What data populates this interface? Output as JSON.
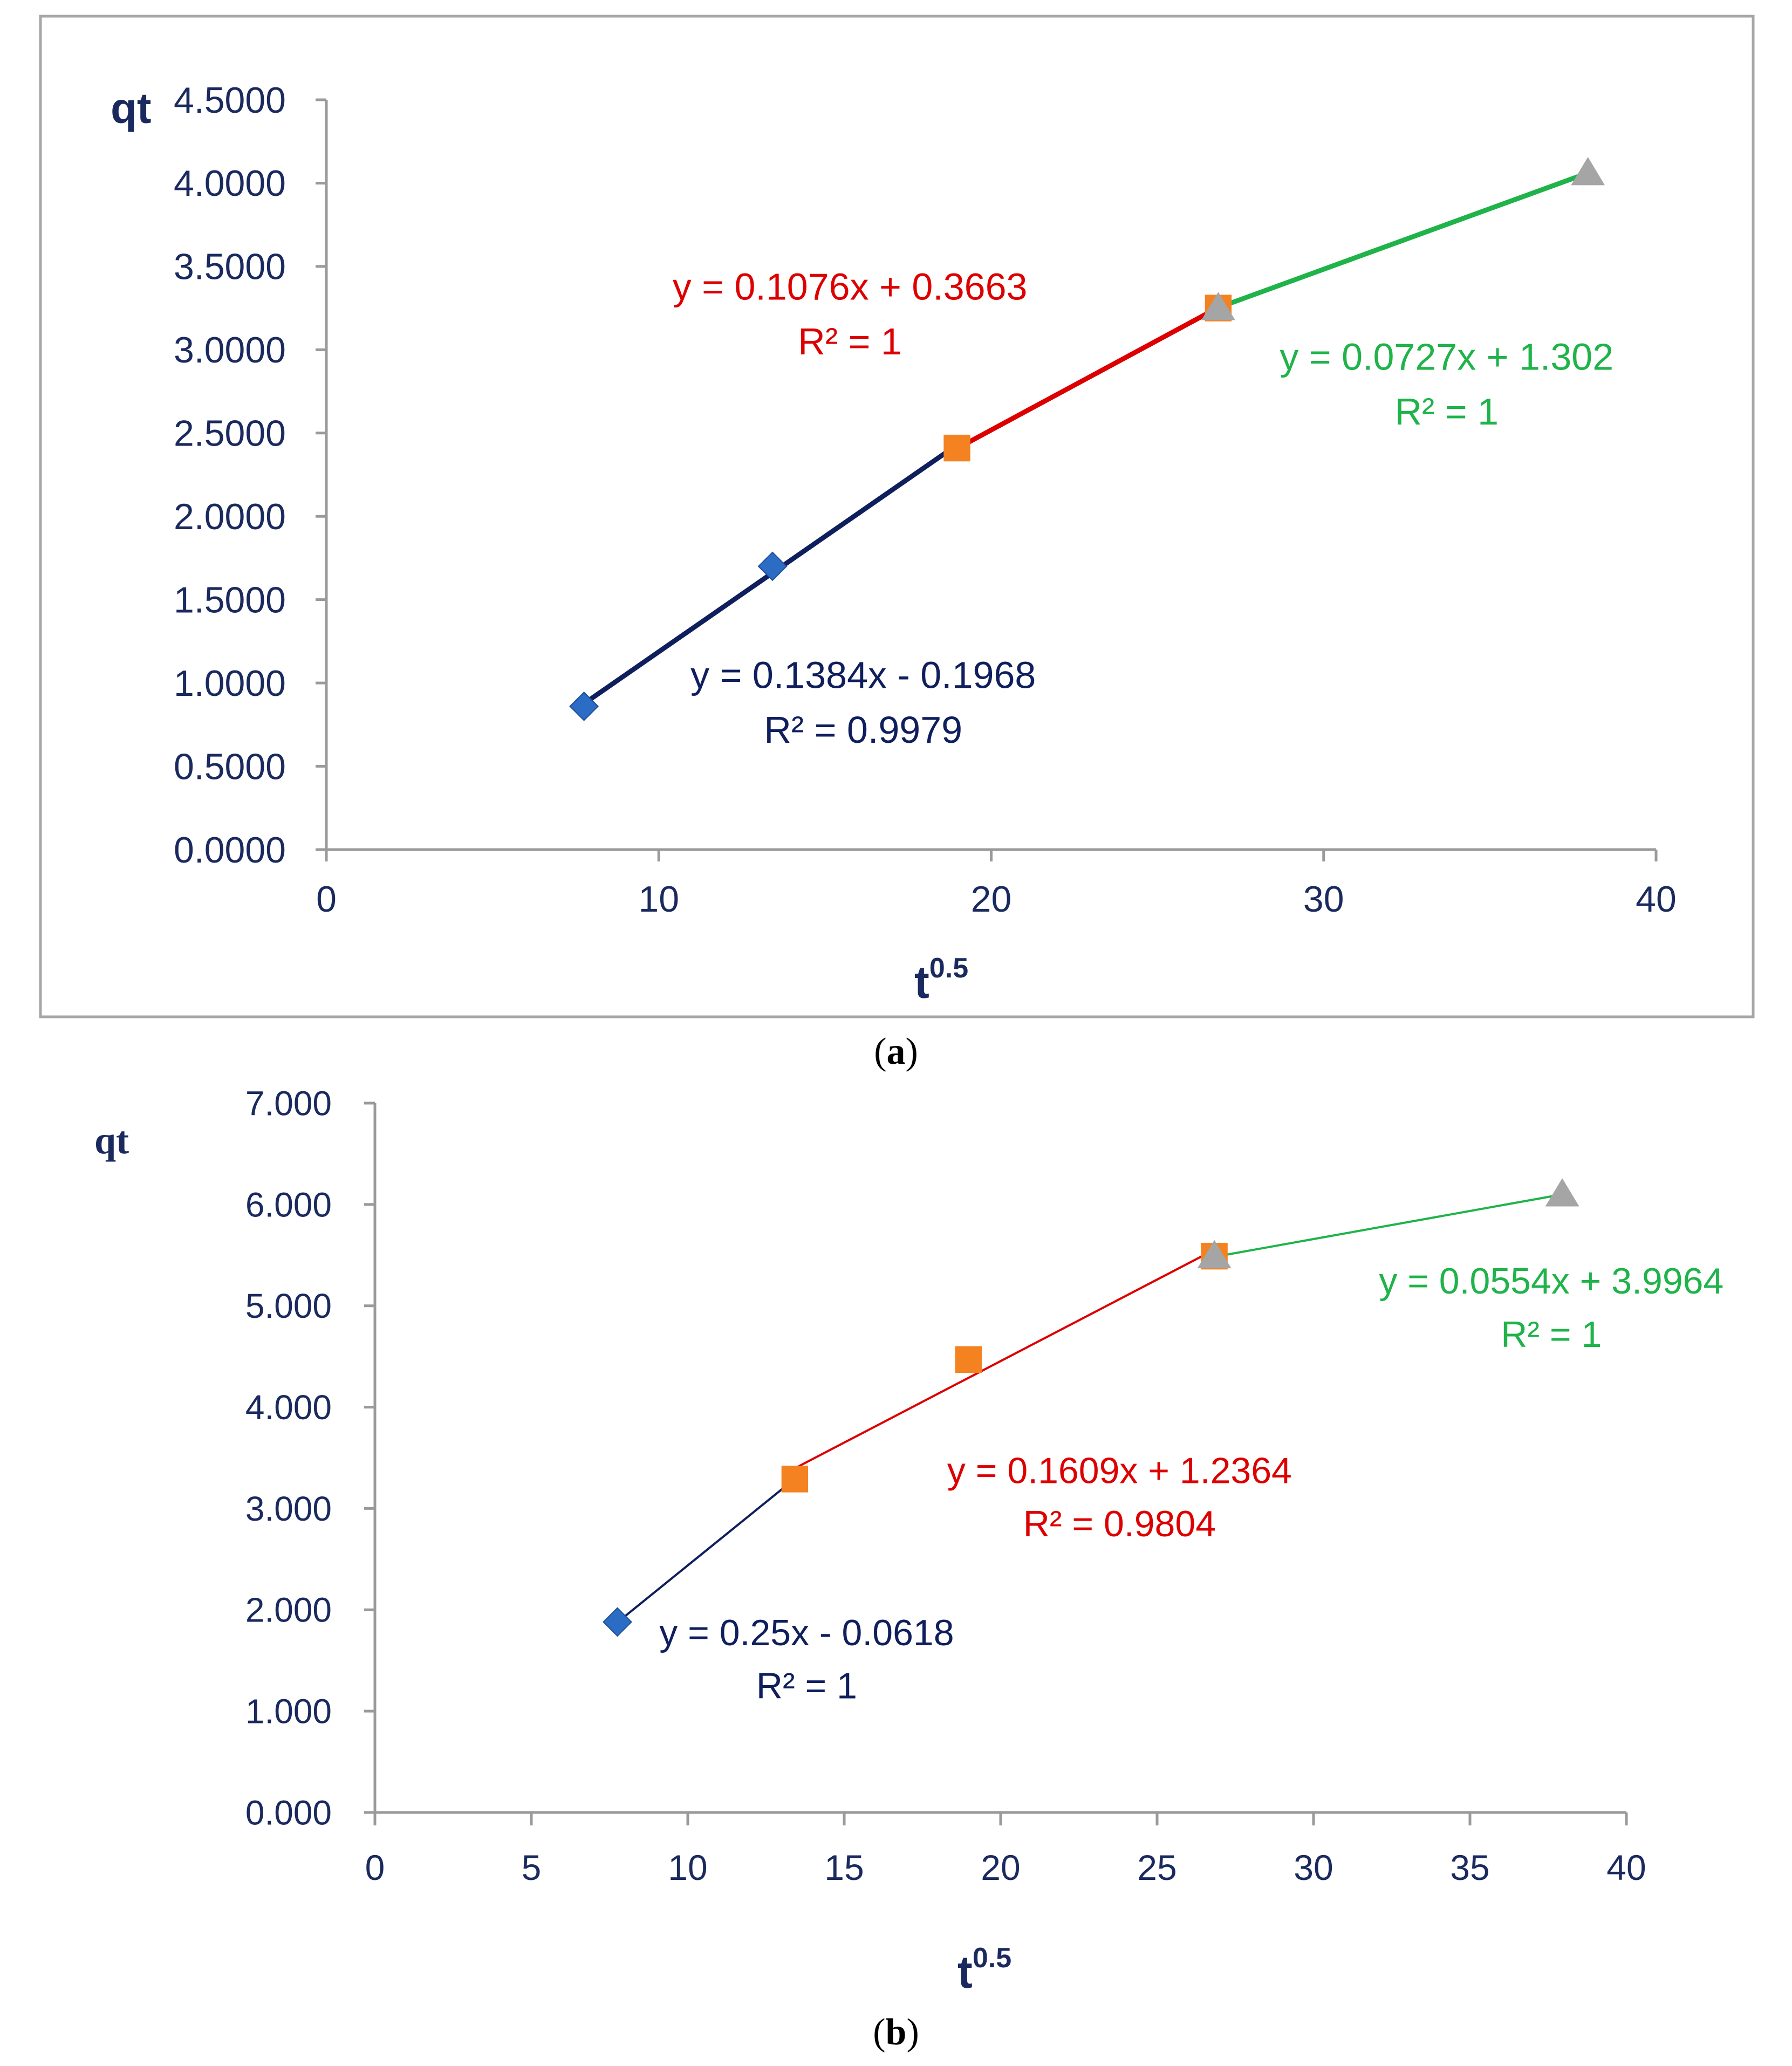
{
  "colors": {
    "axis_text": "#1a2a5e",
    "frame": "#a6a6a6",
    "segment_1": "#0f1e5c",
    "segment_2": "#dd0000",
    "segment_3": "#1fb34a",
    "marker_diamond": "#2b6cc4",
    "marker_square": "#f58220",
    "marker_triangle": "#a5a5a5"
  },
  "chart_data": [
    {
      "type": "line",
      "caption": "(a)",
      "xlabel": "t",
      "xlabel_sup": "0.5",
      "ylabel": "qt",
      "xlim": [
        0,
        40
      ],
      "ylim": [
        0,
        4.5
      ],
      "x_ticks": [
        0,
        10,
        20,
        30,
        40
      ],
      "x_tick_labels": [
        "0",
        "10",
        "20",
        "30",
        "40"
      ],
      "y_ticks": [
        0,
        0.5,
        1,
        1.5,
        2,
        2.5,
        3,
        3.5,
        4,
        4.5
      ],
      "y_tick_labels": [
        "0.0000",
        "0.5000",
        "1.0000",
        "1.5000",
        "2.0000",
        "2.5000",
        "3.0000",
        "3.5000",
        "4.0000",
        "4.5000"
      ],
      "grid": false,
      "framed": true,
      "series": [
        {
          "color": "segment_1",
          "marker": "diamond",
          "marker_color": "marker_diamond",
          "points": [
            [
              7.75,
              0.86
            ],
            [
              13.42,
              1.7
            ]
          ],
          "fit": [
            [
              7.75,
              0.8758
            ],
            [
              18.97,
              2.4286
            ]
          ]
        },
        {
          "color": "segment_2",
          "marker": "square",
          "marker_color": "marker_square",
          "points": [
            [
              18.97,
              2.41
            ],
            [
              26.83,
              3.25
            ]
          ],
          "fit": [
            [
              18.97,
              2.4075
            ],
            [
              26.83,
              3.2532
            ]
          ]
        },
        {
          "color": "segment_3",
          "marker": "triangle",
          "marker_color": "marker_triangle",
          "points": [
            [
              26.83,
              3.25
            ],
            [
              37.95,
              4.06
            ]
          ],
          "fit": [
            [
              26.83,
              3.2526
            ],
            [
              37.95,
              4.0609
            ]
          ]
        }
      ],
      "annotations": [
        {
          "eq": "y = 0.1384x - 0.1968",
          "r2": "R² = 0.9979",
          "color": "segment_1",
          "at": [
            16.15,
            0.97
          ]
        },
        {
          "eq": "y = 0.1076x + 0.3663",
          "r2": "R² = 1",
          "color": "segment_2",
          "at": [
            15.75,
            3.3
          ]
        },
        {
          "eq": "y = 0.0727x + 1.302",
          "r2": "R² = 1",
          "color": "segment_3",
          "at": [
            33.7,
            2.88
          ]
        }
      ]
    },
    {
      "type": "line",
      "caption": "(b)",
      "xlabel": "t",
      "xlabel_sup": "0.5",
      "ylabel": "qt",
      "xlim": [
        0,
        40
      ],
      "ylim": [
        0,
        7
      ],
      "x_ticks": [
        0,
        5,
        10,
        15,
        20,
        25,
        30,
        35,
        40
      ],
      "x_tick_labels": [
        "0",
        "5",
        "10",
        "15",
        "20",
        "25",
        "30",
        "35",
        "40"
      ],
      "y_ticks": [
        0,
        1,
        2,
        3,
        4,
        5,
        6,
        7
      ],
      "y_tick_labels": [
        "0.000",
        "1.000",
        "2.000",
        "3.000",
        "4.000",
        "5.000",
        "6.000",
        "7.000"
      ],
      "grid": false,
      "framed": false,
      "series": [
        {
          "color": "segment_1",
          "marker": "diamond",
          "marker_color": "marker_diamond",
          "points": [
            [
              7.75,
              1.88
            ]
          ],
          "fit": [
            [
              7.75,
              1.876
            ],
            [
              13.42,
              3.293
            ]
          ]
        },
        {
          "color": "segment_2",
          "marker": "square",
          "marker_color": "marker_square",
          "points": [
            [
              13.42,
              3.29
            ],
            [
              18.97,
              4.47
            ],
            [
              26.83,
              5.49
            ]
          ],
          "fit": [
            [
              13.42,
              3.396
            ],
            [
              26.83,
              5.553
            ]
          ]
        },
        {
          "color": "segment_3",
          "marker": "triangle",
          "marker_color": "marker_triangle",
          "points": [
            [
              26.83,
              5.49
            ],
            [
              37.95,
              6.1
            ]
          ],
          "fit": [
            [
              26.83,
              5.483
            ],
            [
              37.95,
              6.099
            ]
          ]
        }
      ],
      "annotations": [
        {
          "eq": "y = 0.25x - 0.0618",
          "r2": "R² = 1",
          "color": "segment_1",
          "at": [
            13.8,
            1.65
          ]
        },
        {
          "eq": "y = 0.1609x + 1.2364",
          "r2": "R² = 0.9804",
          "color": "segment_2",
          "at": [
            23.8,
            3.25
          ]
        },
        {
          "eq": "y = 0.0554x + 3.9964",
          "r2": "R² = 1",
          "color": "segment_3",
          "at": [
            37.6,
            5.12
          ]
        }
      ]
    }
  ]
}
